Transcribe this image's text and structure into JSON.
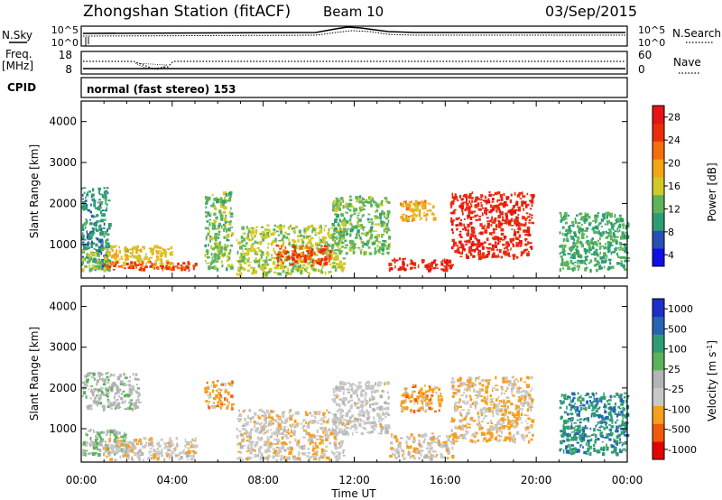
{
  "header": {
    "title": "Zhongshan Station (fitACF)",
    "beam": "Beam 10",
    "date": "03/Sep/2015"
  },
  "top_panels": {
    "noise": {
      "left_label": "N.Sky",
      "right_label": "N.Search",
      "left_ticks": [
        "10^5",
        "10^0"
      ],
      "right_ticks": [
        "10^5",
        "10^0"
      ]
    },
    "freq": {
      "left_label_1": "Freq.",
      "left_label_2": "[MHz]",
      "right_label": "Nave",
      "left_ticks": [
        "18",
        "8"
      ],
      "right_ticks": [
        "60",
        "0"
      ]
    },
    "cpid": {
      "label": "CPID",
      "text": "normal (fast stereo) 153"
    }
  },
  "x_axis": {
    "label": "Time UT",
    "ticks": [
      "00:00",
      "04:00",
      "08:00",
      "12:00",
      "16:00",
      "20:00",
      "00:00"
    ]
  },
  "colors": {
    "power": [
      "#1010e6",
      "#2850b4",
      "#2d9e73",
      "#5fb45a",
      "#d2c828",
      "#f5a514",
      "#f56e0a",
      "#eb2d0a",
      "#e61414"
    ],
    "velocity": [
      "#e60000",
      "#f05a0a",
      "#f5a01e",
      "#c8c8c8",
      "#b4b4b4",
      "#5ab45a",
      "#2d9e73",
      "#2864b4",
      "#1e2ec8"
    ]
  },
  "chart_data": [
    {
      "type": "heatmap",
      "title": "",
      "ylabel": "Slant Range [km]",
      "xlabel": "",
      "ylim": [
        180,
        4500
      ],
      "y_ticks": [
        "1000",
        "2000",
        "3000",
        "4000"
      ],
      "colorbar_label": "Power [dB]",
      "colorbar_ticks": [
        "4",
        "8",
        "12",
        "16",
        "20",
        "24",
        "28"
      ],
      "colorbar_range": [
        0,
        30
      ],
      "regions": [
        {
          "x_start": 0.0,
          "x_end": 1.2,
          "r_lo": 400,
          "r_hi": 2400,
          "value": 8
        },
        {
          "x_start": 0.0,
          "x_end": 1.2,
          "r_lo": 400,
          "r_hi": 900,
          "value": 14
        },
        {
          "x_start": 1.0,
          "x_end": 4.0,
          "r_lo": 500,
          "r_hi": 1000,
          "value": 16
        },
        {
          "x_start": 1.0,
          "x_end": 5.0,
          "r_lo": 400,
          "r_hi": 600,
          "value": 24
        },
        {
          "x_start": 5.4,
          "x_end": 6.6,
          "r_lo": 400,
          "r_hi": 2300,
          "value": 12
        },
        {
          "x_start": 6.8,
          "x_end": 11.5,
          "r_lo": 300,
          "r_hi": 1500,
          "value": 14
        },
        {
          "x_start": 8.5,
          "x_end": 11.0,
          "r_lo": 500,
          "r_hi": 1000,
          "value": 24
        },
        {
          "x_start": 11.0,
          "x_end": 13.5,
          "r_lo": 800,
          "r_hi": 2200,
          "value": 12
        },
        {
          "x_start": 13.5,
          "x_end": 16.3,
          "r_lo": 400,
          "r_hi": 700,
          "value": 26
        },
        {
          "x_start": 14.0,
          "x_end": 15.5,
          "r_lo": 1600,
          "r_hi": 2100,
          "value": 18
        },
        {
          "x_start": 16.2,
          "x_end": 19.8,
          "r_lo": 700,
          "r_hi": 2300,
          "value": 26
        },
        {
          "x_start": 21.0,
          "x_end": 24.0,
          "r_lo": 400,
          "r_hi": 1800,
          "value": 10
        }
      ]
    },
    {
      "type": "heatmap",
      "title": "",
      "ylabel": "Slant Range [km]",
      "xlabel": "Time UT",
      "ylim": [
        180,
        4500
      ],
      "y_ticks": [
        "1000",
        "2000",
        "3000",
        "4000"
      ],
      "colorbar_label": "Velocity [m s^-1]",
      "colorbar_ticks": [
        "-1000",
        "-500",
        "-100",
        "-25",
        "25",
        "100",
        "500",
        "1000"
      ],
      "colorbar_range": [
        -1200,
        1200
      ],
      "regions": [
        {
          "x_start": 0.0,
          "x_end": 2.5,
          "r_lo": 1500,
          "r_hi": 2400,
          "value": 0
        },
        {
          "x_start": 0.0,
          "x_end": 2.0,
          "r_lo": 400,
          "r_hi": 1000,
          "value": 150
        },
        {
          "x_start": 1.0,
          "x_end": 5.0,
          "r_lo": 250,
          "r_hi": 800,
          "value": -300
        },
        {
          "x_start": 5.4,
          "x_end": 6.6,
          "r_lo": 1500,
          "r_hi": 2200,
          "value": -500
        },
        {
          "x_start": 6.8,
          "x_end": 11.5,
          "r_lo": 250,
          "r_hi": 1500,
          "value": -300
        },
        {
          "x_start": 11.0,
          "x_end": 13.5,
          "r_lo": 900,
          "r_hi": 2200,
          "value": -200
        },
        {
          "x_start": 13.5,
          "x_end": 16.3,
          "r_lo": 300,
          "r_hi": 900,
          "value": -300
        },
        {
          "x_start": 14.0,
          "x_end": 15.8,
          "r_lo": 1400,
          "r_hi": 2100,
          "value": -500
        },
        {
          "x_start": 16.2,
          "x_end": 19.8,
          "r_lo": 700,
          "r_hi": 2300,
          "value": -400
        },
        {
          "x_start": 21.0,
          "x_end": 24.0,
          "r_lo": 400,
          "r_hi": 1900,
          "value": 600
        }
      ]
    }
  ]
}
